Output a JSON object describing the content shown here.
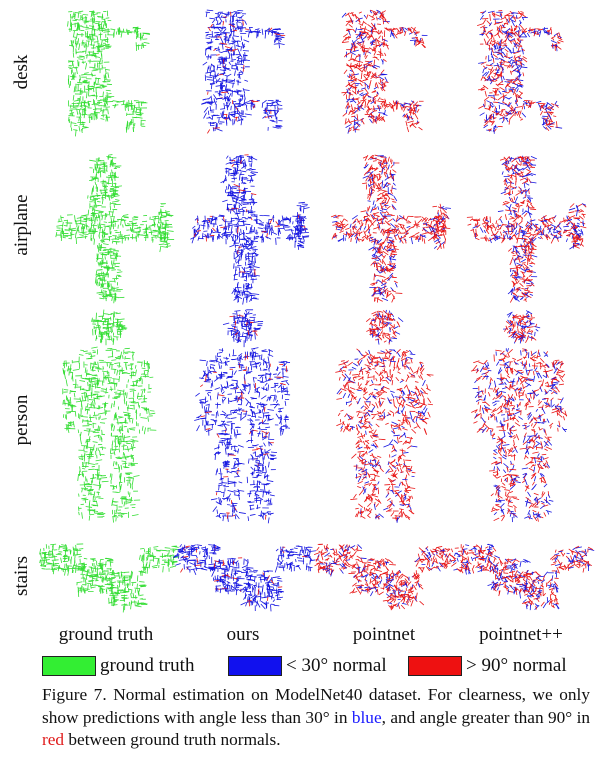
{
  "rows": [
    {
      "label": "desk"
    },
    {
      "label": "airplane"
    },
    {
      "label": "person"
    },
    {
      "label": "stairs"
    }
  ],
  "columns": [
    {
      "label": "ground truth",
      "mode": "green"
    },
    {
      "label": "ours",
      "mode": "blue"
    },
    {
      "label": "pointnet",
      "mode": "red_heavy"
    },
    {
      "label": "pointnet++",
      "mode": "mixed"
    }
  ],
  "legend": [
    {
      "label": "ground truth",
      "color": "#33ee33"
    },
    {
      "label": "< 30° normal",
      "color": "#1111ee"
    },
    {
      "label": "> 90° normal",
      "color": "#ee1111"
    }
  ],
  "caption": {
    "prefix": "Figure 7. Normal estimation on ModelNet40 dataset.  For clearness, we only show predictions with angle less than 30° in ",
    "blue_word": "blue",
    "middle": ", and angle greater than 90° in ",
    "red_word": "red",
    "suffix": " between ground truth normals."
  },
  "colors": {
    "green": "#33dd33",
    "blue": "#1515e0",
    "red": "#e81515"
  }
}
